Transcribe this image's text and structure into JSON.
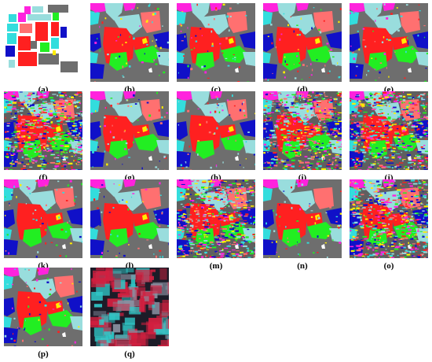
{
  "panels": [
    {
      "label": "(a)",
      "variant": "ground-truth"
    },
    {
      "label": "(b)",
      "variant": "smooth"
    },
    {
      "label": "(c)",
      "variant": "smooth"
    },
    {
      "label": "(d)",
      "variant": "smooth"
    },
    {
      "label": "(e)",
      "variant": "smooth"
    },
    {
      "label": "(f)",
      "variant": "noisy"
    },
    {
      "label": "(g)",
      "variant": "smooth"
    },
    {
      "label": "(h)",
      "variant": "smooth"
    },
    {
      "label": "(i)",
      "variant": "noisy"
    },
    {
      "label": "(j)",
      "variant": "noisy"
    },
    {
      "label": "(k)",
      "variant": "smooth"
    },
    {
      "label": "(l)",
      "variant": "smooth"
    },
    {
      "label": "(m)",
      "variant": "noisy"
    },
    {
      "label": "(n)",
      "variant": "smooth"
    },
    {
      "label": "(o)",
      "variant": "noisy"
    },
    {
      "label": "(p)",
      "variant": "smooth"
    },
    {
      "label": "(q)",
      "variant": "false-color"
    }
  ],
  "palette": {
    "background": "#6e6e6e",
    "red": "#ff2020",
    "green": "#22ee22",
    "blue": "#1010c8",
    "cyan": "#33dddd",
    "light-cyan": "#99dddd",
    "salmon": "#ff7070",
    "magenta": "#ff22dd",
    "yellow": "#ffee00",
    "white": "#ffffff"
  }
}
